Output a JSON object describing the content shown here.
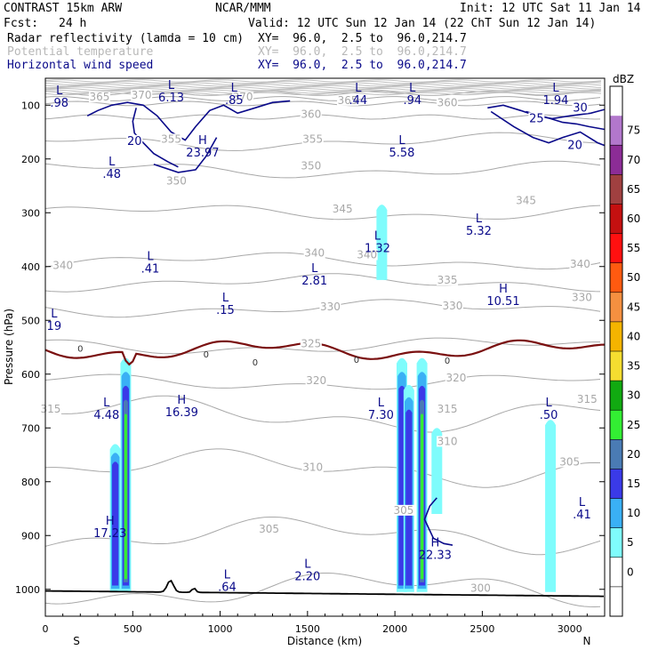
{
  "header": {
    "model": "CONTRAST 15km ARW",
    "center": "NCAR/MMM",
    "init": "Init: 12 UTC Sat 11 Jan 14",
    "fcst_label": "Fcst:",
    "fcst_value": "24 h",
    "valid": "Valid: 12 UTC Sun 12 Jan 14 (22 ChT Sun 12 Jan 14)",
    "fields": [
      {
        "name": "Radar reflectivity (lamda = 10 cm)",
        "xy": "XY=  96.0,  2.5 to  96.0,214.7",
        "style": "black"
      },
      {
        "name": "Potential temperature",
        "xy": "XY=  96.0,  2.5 to  96.0,214.7",
        "style": "gray"
      },
      {
        "name": "Horizontal wind speed",
        "xy": "XY=  96.0,  2.5 to  96.0,214.7",
        "style": "navy"
      }
    ]
  },
  "chart_data": {
    "type": "cross-section contour",
    "xlabel": "Distance (km)",
    "ylabel": "Pressure (hPa)",
    "xlim": [
      0,
      3200
    ],
    "ylim": [
      1050,
      50
    ],
    "x_ticks": [
      "0",
      "500",
      "1000",
      "1500",
      "2000",
      "2500",
      "3000"
    ],
    "x_tick_values": [
      0,
      500,
      1000,
      1500,
      2000,
      2500,
      3000
    ],
    "y_ticks": [
      "100",
      "200",
      "300",
      "400",
      "500",
      "600",
      "700",
      "800",
      "900",
      "1000"
    ],
    "y_tick_values": [
      100,
      200,
      300,
      400,
      500,
      600,
      700,
      800,
      900,
      1000
    ],
    "left_end": "S",
    "right_end": "N",
    "theta_levels": [
      {
        "label": "300",
        "value": 300
      },
      {
        "label": "305",
        "value": 305
      },
      {
        "label": "310",
        "value": 310
      },
      {
        "label": "315",
        "value": 315
      },
      {
        "label": "320",
        "value": 320
      },
      {
        "label": "325",
        "value": 325
      },
      {
        "label": "330",
        "value": 330
      },
      {
        "label": "335",
        "value": 335
      },
      {
        "label": "340",
        "value": 340
      },
      {
        "label": "345",
        "value": 345
      },
      {
        "label": "350",
        "value": 350
      },
      {
        "label": "355",
        "value": 355
      },
      {
        "label": "360",
        "value": 360
      },
      {
        "label": "365",
        "value": 365
      },
      {
        "label": "370",
        "value": 370
      },
      {
        "label": "375",
        "value": 375
      }
    ],
    "theta_labels": [
      {
        "text": "300",
        "km": 2490,
        "p": 1003
      },
      {
        "text": "305",
        "km": 1280,
        "p": 893
      },
      {
        "text": "305",
        "km": 2050,
        "p": 858
      },
      {
        "text": "305",
        "km": 3000,
        "p": 768
      },
      {
        "text": "310",
        "km": 1530,
        "p": 778
      },
      {
        "text": "310",
        "km": 2300,
        "p": 730
      },
      {
        "text": "315",
        "km": 30,
        "p": 670
      },
      {
        "text": "315",
        "km": 2300,
        "p": 670
      },
      {
        "text": "315",
        "km": 3100,
        "p": 652
      },
      {
        "text": "320",
        "km": 1550,
        "p": 617
      },
      {
        "text": "320",
        "km": 2350,
        "p": 612
      },
      {
        "text": "325",
        "km": 1520,
        "p": 548
      },
      {
        "text": "330",
        "km": 1630,
        "p": 480
      },
      {
        "text": "330",
        "km": 2330,
        "p": 478
      },
      {
        "text": "330",
        "km": 3070,
        "p": 462
      },
      {
        "text": "335",
        "km": 2300,
        "p": 430
      },
      {
        "text": "340",
        "km": 100,
        "p": 403
      },
      {
        "text": "340",
        "km": 1540,
        "p": 380
      },
      {
        "text": "340",
        "km": 1840,
        "p": 383
      },
      {
        "text": "340",
        "km": 3060,
        "p": 400
      },
      {
        "text": "345",
        "km": 1700,
        "p": 298
      },
      {
        "text": "345",
        "km": 2750,
        "p": 282
      },
      {
        "text": "350",
        "km": 1520,
        "p": 218
      },
      {
        "text": "350",
        "km": 750,
        "p": 246
      },
      {
        "text": "355",
        "km": 720,
        "p": 168
      },
      {
        "text": "355",
        "km": 1530,
        "p": 168
      },
      {
        "text": "360",
        "km": 1520,
        "p": 122
      },
      {
        "text": "360",
        "km": 2300,
        "p": 100
      },
      {
        "text": "365",
        "km": 310,
        "p": 90
      },
      {
        "text": "365",
        "km": 1730,
        "p": 96
      },
      {
        "text": "370",
        "km": 550,
        "p": 86
      },
      {
        "text": "370",
        "km": 1130,
        "p": 90
      }
    ],
    "wind_contours": [
      {
        "label": "20",
        "km": 510,
        "p": 172
      },
      {
        "label": "20",
        "km": 3030,
        "p": 180
      },
      {
        "label": "25",
        "km": 2810,
        "p": 130
      },
      {
        "label": "30",
        "km": 3060,
        "p": 110
      }
    ],
    "extrema": [
      {
        "type": "L",
        "value": ".98",
        "km": 80,
        "p": 80
      },
      {
        "type": "L",
        "value": "6.13",
        "km": 720,
        "p": 70
      },
      {
        "type": "L",
        "value": ".85",
        "km": 1080,
        "p": 75
      },
      {
        "type": "L",
        "value": ".44",
        "km": 1790,
        "p": 75
      },
      {
        "type": "L",
        "value": ".94",
        "km": 2100,
        "p": 75
      },
      {
        "type": "L",
        "value": "1.94",
        "km": 2920,
        "p": 75
      },
      {
        "type": "H",
        "value": "23.97",
        "km": 900,
        "p": 172
      },
      {
        "type": "L",
        "value": "5.58",
        "km": 2040,
        "p": 172
      },
      {
        "type": "L",
        "value": ".48",
        "km": 380,
        "p": 212
      },
      {
        "type": "L",
        "value": "5.32",
        "km": 2480,
        "p": 318
      },
      {
        "type": "L",
        "value": "1.32",
        "km": 1900,
        "p": 350
      },
      {
        "type": "L",
        "value": ".41",
        "km": 600,
        "p": 388
      },
      {
        "type": "L",
        "value": "2.81",
        "km": 1540,
        "p": 410
      },
      {
        "type": "H",
        "value": "10.51",
        "km": 2620,
        "p": 448
      },
      {
        "type": "L",
        "value": ".15",
        "km": 1030,
        "p": 465
      },
      {
        "type": "L",
        "value": "19",
        "km": 50,
        "p": 495
      },
      {
        "type": "L",
        "value": "4.48",
        "km": 350,
        "p": 660
      },
      {
        "type": "H",
        "value": "16.39",
        "km": 780,
        "p": 655
      },
      {
        "type": "L",
        "value": "7.30",
        "km": 1920,
        "p": 660
      },
      {
        "type": "L",
        "value": ".50",
        "km": 2880,
        "p": 660
      },
      {
        "type": "H",
        "value": "17.23",
        "km": 370,
        "p": 880
      },
      {
        "type": "H",
        "value": "22.33",
        "km": 2230,
        "p": 920
      },
      {
        "type": "L",
        "value": ".41",
        "km": 3070,
        "p": 845
      },
      {
        "type": "L",
        "value": "2.20",
        "km": 1500,
        "p": 960
      },
      {
        "type": "L",
        "value": ".64",
        "km": 1040,
        "p": 980
      }
    ],
    "zero_line_labels": [
      {
        "text": "0",
        "km": 200,
        "p": 552
      },
      {
        "text": "0",
        "km": 920,
        "p": 562
      },
      {
        "text": "0",
        "km": 1200,
        "p": 577
      },
      {
        "text": "0",
        "km": 1780,
        "p": 572
      },
      {
        "text": "0",
        "km": 2300,
        "p": 574
      }
    ],
    "reflectivity_cells": [
      {
        "km": 400,
        "p_top": 730,
        "p_bot": 1005,
        "max_dbz": 20
      },
      {
        "km": 460,
        "p_top": 570,
        "p_bot": 1005,
        "max_dbz": 30
      },
      {
        "km": 2040,
        "p_top": 570,
        "p_bot": 1005,
        "max_dbz": 20
      },
      {
        "km": 2080,
        "p_top": 620,
        "p_bot": 1005,
        "max_dbz": 20
      },
      {
        "km": 2155,
        "p_top": 570,
        "p_bot": 1005,
        "max_dbz": 30
      },
      {
        "km": 1925,
        "p_top": 285,
        "p_bot": 425,
        "max_dbz": 10
      },
      {
        "km": 2890,
        "p_top": 685,
        "p_bot": 1005,
        "max_dbz": 10
      },
      {
        "km": 2240,
        "p_top": 700,
        "p_bot": 860,
        "max_dbz": 10
      }
    ],
    "colorbar": {
      "unit": "dBZ",
      "levels": [
        "0",
        "5",
        "10",
        "15",
        "20",
        "25",
        "30",
        "35",
        "40",
        "45",
        "50",
        "55",
        "60",
        "65",
        "70",
        "75"
      ],
      "colors": [
        "#ffffff",
        "#ffffff",
        "#7ffcfc",
        "#3ab0f5",
        "#3a3ae8",
        "#4a7bb4",
        "#33ee33",
        "#11aa11",
        "#f5dd30",
        "#f5b400",
        "#f59040",
        "#ff5a10",
        "#ff1010",
        "#c41010",
        "#a04040",
        "#8c2c96",
        "#b277cc",
        "#ffffff"
      ]
    }
  }
}
